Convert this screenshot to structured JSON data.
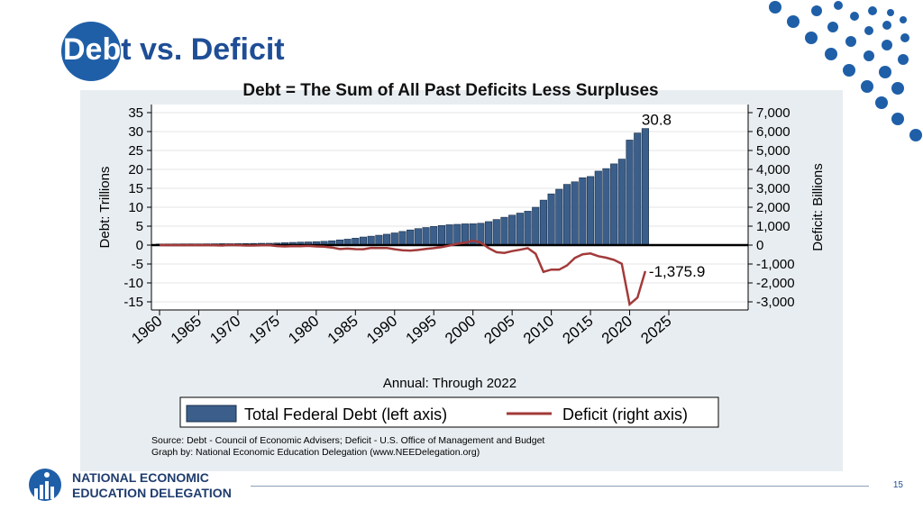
{
  "slide": {
    "title_first": "Deb",
    "title_rest": "t vs. Deficit",
    "subtitle": "Debt = The Sum of All Past Deficits Less Surpluses",
    "page_number": "15",
    "org_line1": "NATIONAL ECONOMIC",
    "org_line2": "EDUCATION DELEGATION",
    "brand_color": "#1f5fa8"
  },
  "chart_data": {
    "type": "bar",
    "x_years": [
      1960,
      1961,
      1962,
      1963,
      1964,
      1965,
      1966,
      1967,
      1968,
      1969,
      1970,
      1971,
      1972,
      1973,
      1974,
      1975,
      1976,
      1977,
      1978,
      1979,
      1980,
      1981,
      1982,
      1983,
      1984,
      1985,
      1986,
      1987,
      1988,
      1989,
      1990,
      1991,
      1992,
      1993,
      1994,
      1995,
      1996,
      1997,
      1998,
      1999,
      2000,
      2001,
      2002,
      2003,
      2004,
      2005,
      2006,
      2007,
      2008,
      2009,
      2010,
      2011,
      2012,
      2013,
      2014,
      2015,
      2016,
      2017,
      2018,
      2019,
      2020,
      2021,
      2022
    ],
    "series": [
      {
        "name": "Total Federal Debt (left axis)",
        "axis": "left",
        "kind": "bar",
        "color": "#3b5f8a",
        "values": [
          0.29,
          0.29,
          0.3,
          0.31,
          0.32,
          0.32,
          0.33,
          0.34,
          0.37,
          0.37,
          0.38,
          0.41,
          0.44,
          0.47,
          0.48,
          0.54,
          0.63,
          0.71,
          0.78,
          0.83,
          0.91,
          1.0,
          1.14,
          1.37,
          1.56,
          1.82,
          2.13,
          2.35,
          2.6,
          2.87,
          3.21,
          3.6,
          4.0,
          4.35,
          4.64,
          4.92,
          5.18,
          5.37,
          5.48,
          5.61,
          5.63,
          5.77,
          6.2,
          6.76,
          7.35,
          7.91,
          8.45,
          8.95,
          9.99,
          11.88,
          13.53,
          14.76,
          16.05,
          16.72,
          17.79,
          18.12,
          19.54,
          20.21,
          21.46,
          22.72,
          27.75,
          29.62,
          30.8
        ]
      },
      {
        "name": "Deficit (right axis)",
        "axis": "right",
        "kind": "line",
        "color": "#a33a3a",
        "values": [
          0.3,
          -3.3,
          -7.1,
          -4.8,
          -5.9,
          -1.4,
          -3.7,
          -8.6,
          -25.2,
          3.2,
          -2.8,
          -23.0,
          -23.4,
          -14.9,
          -6.1,
          -53.2,
          -73.7,
          -53.7,
          -59.2,
          -40.7,
          -73.8,
          -79.0,
          -128.0,
          -207.8,
          -185.4,
          -212.3,
          -221.2,
          -149.7,
          -155.2,
          -152.6,
          -221.0,
          -269.2,
          -290.3,
          -255.1,
          -203.2,
          -164.0,
          -107.4,
          -21.9,
          69.3,
          125.6,
          236.2,
          128.2,
          -157.8,
          -377.6,
          -412.7,
          -318.3,
          -248.2,
          -160.7,
          -458.6,
          -1412.7,
          -1294.4,
          -1299.6,
          -1076.6,
          -679.8,
          -484.8,
          -441.9,
          -584.7,
          -665.4,
          -779.1,
          -983.6,
          -3132.5,
          -2775.3,
          -1375.9
        ]
      }
    ],
    "left_axis": {
      "label": "Debt: Trillions",
      "range": [
        -15,
        35
      ],
      "ticks": [
        -15,
        -10,
        -5,
        0,
        5,
        10,
        15,
        20,
        25,
        30,
        35
      ]
    },
    "right_axis": {
      "label": "Deficit: Billions",
      "range": [
        -3500,
        7500
      ],
      "ticks": [
        -3000,
        -2000,
        -1000,
        0,
        1000,
        2000,
        3000,
        4000,
        5000,
        6000,
        7000
      ],
      "tick_labels": [
        "-3,000",
        "-2,000",
        "-1,000",
        "0",
        "1,000",
        "2,000",
        "3,000",
        "4,000",
        "5,000",
        "6,000",
        "7,000"
      ]
    },
    "x_axis": {
      "label": "Annual: Through 2022",
      "range": [
        1959,
        2030
      ],
      "ticks": [
        1960,
        1965,
        1970,
        1975,
        1980,
        1985,
        1990,
        1995,
        2000,
        2005,
        2010,
        2015,
        2020,
        2025
      ]
    },
    "annotations": [
      {
        "text": "30.8",
        "series": "debt",
        "year": 2022
      },
      {
        "text": "-1,375.9",
        "series": "deficit",
        "year": 2022
      }
    ],
    "legend": {
      "position": "bottom"
    },
    "source_line1": "Source: Debt - Council of Economic Advisers; Deficit - U.S. Office of Management and Budget",
    "source_line2": "Graph by: National Economic Education Delegation (www.NEEDelegation.org)"
  }
}
